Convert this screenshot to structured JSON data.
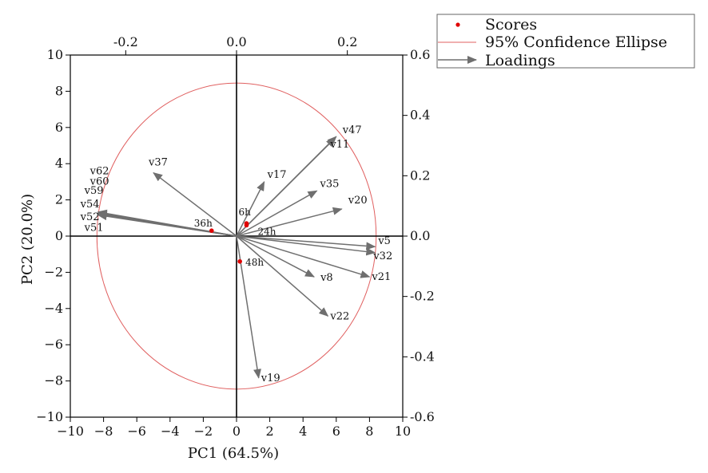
{
  "chart_data": {
    "type": "scatter",
    "subtype": "pca-biplot",
    "xlabel": "PC1 (64.5%)",
    "ylabel": "PC2 (20.0%)",
    "xlim": [
      -10,
      10
    ],
    "ylim": [
      -10,
      10
    ],
    "x_ticks": [
      "−10",
      "−8",
      "−6",
      "−4",
      "−2",
      "0",
      "2",
      "4",
      "6",
      "8",
      "10"
    ],
    "y_ticks": [
      "−10",
      "−8",
      "−6",
      "−4",
      "−2",
      "0",
      "2",
      "4",
      "6",
      "8",
      "10"
    ],
    "loading_x_range": [
      -0.3,
      0.3
    ],
    "loading_y_range": [
      -0.6,
      0.6
    ],
    "top_ticks": [
      {
        "label": "-0.2",
        "value": -0.2
      },
      {
        "label": "0.0",
        "value": 0.0
      },
      {
        "label": "0.2",
        "value": 0.2
      }
    ],
    "right_ticks": [
      {
        "label": "0.6",
        "value": 0.6
      },
      {
        "label": "0.4",
        "value": 0.4
      },
      {
        "label": "0.2",
        "value": 0.2
      },
      {
        "label": "0.0",
        "value": 0.0
      },
      {
        "label": "-0.2",
        "value": -0.2
      },
      {
        "label": "-0.4",
        "value": -0.4
      },
      {
        "label": "-0.6",
        "value": -0.6
      }
    ],
    "grid": false,
    "legend": {
      "position": "top-right",
      "entries": [
        "Scores",
        "95% Confidence Ellipse",
        "Loadings"
      ]
    },
    "colors": {
      "scores": "#e00000",
      "ellipse": "#e06060",
      "loadings": "#6f6f6f",
      "axes": "#000000"
    },
    "confidence_ellipse": {
      "cx": 0,
      "cy": 0,
      "rx": 8.4,
      "ry": 8.45
    },
    "scores": [
      {
        "label": "6h",
        "x": 0.6,
        "y": 0.7
      },
      {
        "label": "24h",
        "x": 0.6,
        "y": 0.6
      },
      {
        "label": "36h",
        "x": -1.5,
        "y": 0.3
      },
      {
        "label": "48h",
        "x": 0.2,
        "y": -1.4
      }
    ],
    "loadings": [
      {
        "label": "v47",
        "x": 0.18,
        "y": 0.33
      },
      {
        "label": "v11",
        "x": 0.178,
        "y": 0.325
      },
      {
        "label": "v17",
        "x": 0.05,
        "y": 0.18
      },
      {
        "label": "v35",
        "x": 0.145,
        "y": 0.15
      },
      {
        "label": "v20",
        "x": 0.19,
        "y": 0.09
      },
      {
        "label": "v37",
        "x": -0.15,
        "y": 0.21
      },
      {
        "label": "v62",
        "x": -0.25,
        "y": 0.08
      },
      {
        "label": "v60",
        "x": -0.25,
        "y": 0.078
      },
      {
        "label": "v59",
        "x": -0.25,
        "y": 0.076
      },
      {
        "label": "v54",
        "x": -0.25,
        "y": 0.074
      },
      {
        "label": "v52",
        "x": -0.25,
        "y": 0.072
      },
      {
        "label": "v51",
        "x": -0.25,
        "y": 0.07
      },
      {
        "label": "v5",
        "x": 0.25,
        "y": -0.035
      },
      {
        "label": "v32",
        "x": 0.25,
        "y": -0.055
      },
      {
        "label": "v21",
        "x": 0.24,
        "y": -0.135
      },
      {
        "label": "v8",
        "x": 0.14,
        "y": -0.135
      },
      {
        "label": "v22",
        "x": 0.165,
        "y": -0.265
      },
      {
        "label": "v19",
        "x": 0.04,
        "y": -0.47
      }
    ]
  }
}
